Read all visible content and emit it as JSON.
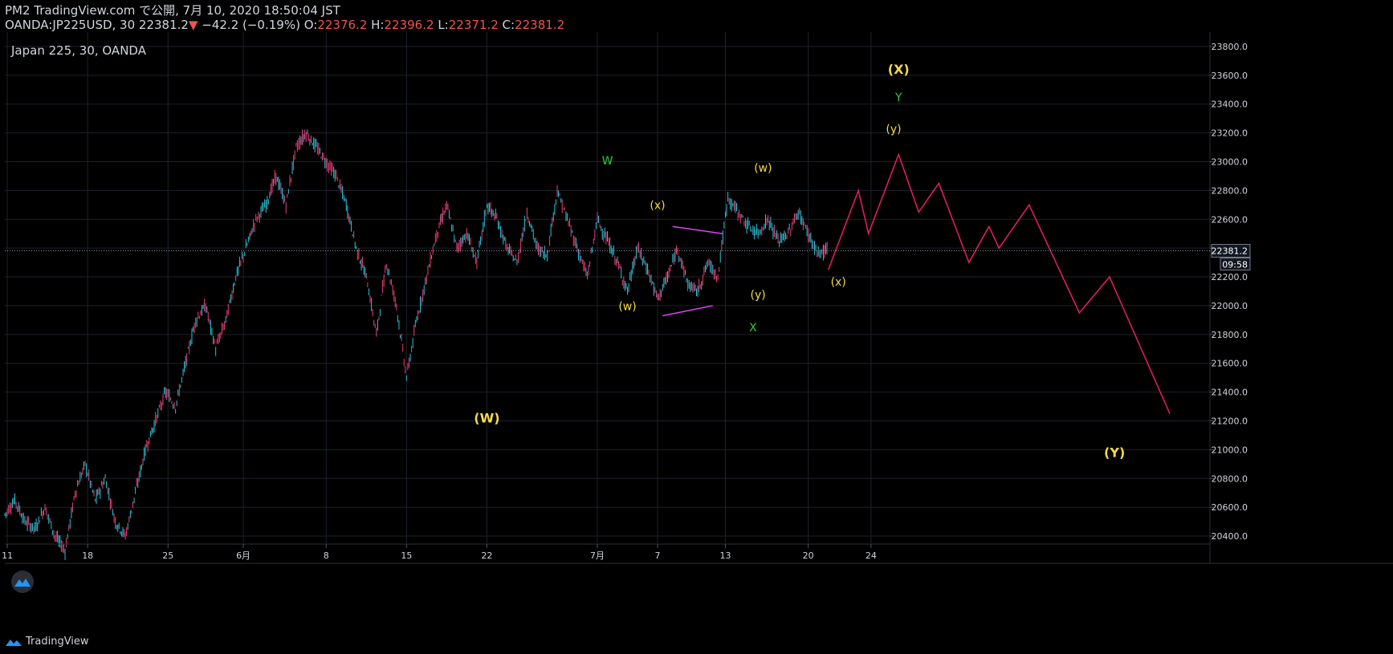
{
  "header": {
    "published": "PM2 TradingView.com で公開, 7月 10, 2020 18:50:04 JST",
    "symbol": "OANDA:JP225USD, 30",
    "last": "22381.2",
    "change": "−42.2 (−0.19%)",
    "o_label": "O:",
    "o_value": "22376.2",
    "h_label": "H:",
    "h_value": "22396.2",
    "l_label": "L:",
    "l_value": "22371.2",
    "c_label": "C:",
    "c_value": "22381.2"
  },
  "chart_data": {
    "type": "line",
    "title": "Japan 225, 30, OANDA",
    "ylim": [
      20350,
      23900
    ],
    "y_ticks": [
      "23800.0",
      "23600.0",
      "23400.0",
      "23200.0",
      "23000.0",
      "22800.0",
      "22600.0",
      "22400.0",
      "22200.0",
      "22000.0",
      "21800.0",
      "21600.0",
      "21400.0",
      "21200.0",
      "21000.0",
      "20800.0",
      "20600.0",
      "20400.0"
    ],
    "x_ticks": [
      "11",
      "18",
      "25",
      "6月",
      "8",
      "15",
      "22",
      "7月",
      "7",
      "13",
      "20",
      "24"
    ],
    "current_price": "22381.2",
    "countdown": "09:58",
    "colors": {
      "up": "#26c6da",
      "down": "#ec407a",
      "projection": "#e91e63",
      "channel": "#e040fb",
      "grid": "#1e222d",
      "yellow": "#f5d94a",
      "green": "#2ecc40"
    },
    "price_series": {
      "name": "",
      "points": [
        [
          0,
          20550
        ],
        [
          2,
          20650
        ],
        [
          4,
          20500
        ],
        [
          6,
          20450
        ],
        [
          8,
          20600
        ],
        [
          10,
          20400
        ],
        [
          12,
          20300
        ],
        [
          14,
          20700
        ],
        [
          16,
          20900
        ],
        [
          18,
          20650
        ],
        [
          20,
          20800
        ],
        [
          22,
          20500
        ],
        [
          24,
          20400
        ],
        [
          26,
          20700
        ],
        [
          28,
          21000
        ],
        [
          30,
          21200
        ],
        [
          32,
          21400
        ],
        [
          34,
          21300
        ],
        [
          36,
          21600
        ],
        [
          38,
          21900
        ],
        [
          40,
          22000
        ],
        [
          42,
          21700
        ],
        [
          44,
          21900
        ],
        [
          46,
          22200
        ],
        [
          48,
          22400
        ],
        [
          50,
          22600
        ],
        [
          52,
          22700
        ],
        [
          54,
          22900
        ],
        [
          56,
          22700
        ],
        [
          58,
          23100
        ],
        [
          60,
          23200
        ],
        [
          62,
          23100
        ],
        [
          64,
          23000
        ],
        [
          66,
          22900
        ],
        [
          68,
          22700
        ],
        [
          70,
          22400
        ],
        [
          72,
          22200
        ],
        [
          74,
          21800
        ],
        [
          76,
          22300
        ],
        [
          78,
          22000
        ],
        [
          80,
          21500
        ],
        [
          82,
          21900
        ],
        [
          84,
          22200
        ],
        [
          86,
          22500
        ],
        [
          88,
          22700
        ],
        [
          90,
          22400
        ],
        [
          92,
          22500
        ],
        [
          94,
          22300
        ],
        [
          96,
          22700
        ],
        [
          98,
          22600
        ],
        [
          100,
          22400
        ],
        [
          102,
          22300
        ],
        [
          104,
          22650
        ],
        [
          106,
          22400
        ],
        [
          108,
          22350
        ],
        [
          110,
          22800
        ],
        [
          112,
          22600
        ],
        [
          114,
          22400
        ],
        [
          116,
          22200
        ],
        [
          118,
          22600
        ],
        [
          120,
          22450
        ],
        [
          122,
          22300
        ],
        [
          124,
          22100
        ],
        [
          126,
          22400
        ],
        [
          128,
          22250
        ],
        [
          130,
          22050
        ],
        [
          132,
          22200
        ],
        [
          134,
          22400
        ],
        [
          136,
          22150
        ],
        [
          138,
          22100
        ],
        [
          140,
          22300
        ],
        [
          142,
          22200
        ],
        [
          144,
          22750
        ],
        [
          146,
          22650
        ],
        [
          148,
          22550
        ],
        [
          150,
          22500
        ],
        [
          152,
          22600
        ],
        [
          154,
          22450
        ],
        [
          156,
          22500
        ],
        [
          158,
          22650
        ],
        [
          160,
          22500
        ],
        [
          162,
          22350
        ],
        [
          164,
          22400
        ]
      ]
    },
    "projection": {
      "name": "",
      "points": [
        [
          164,
          22250
        ],
        [
          170,
          22800
        ],
        [
          172,
          22500
        ],
        [
          178,
          23050
        ],
        [
          182,
          22650
        ],
        [
          186,
          22850
        ],
        [
          192,
          22300
        ],
        [
          196,
          22550
        ],
        [
          198,
          22400
        ],
        [
          204,
          22700
        ],
        [
          214,
          21950
        ],
        [
          220,
          22200
        ],
        [
          232,
          21250
        ]
      ]
    },
    "channel_lines": [
      {
        "points": [
          [
            133,
            22550
          ],
          [
            143,
            22500
          ]
        ]
      },
      {
        "points": [
          [
            131,
            21930
          ],
          [
            141,
            22000
          ]
        ]
      }
    ],
    "annotations": [
      {
        "text": "(X)",
        "x": 178,
        "y": 23610,
        "color": "yellow",
        "bold": true
      },
      {
        "text": "Y",
        "x": 178,
        "y": 23420,
        "color": "green",
        "bold": false
      },
      {
        "text": "(y)",
        "x": 177,
        "y": 23200,
        "color": "yellow",
        "bold": false
      },
      {
        "text": "W",
        "x": 120,
        "y": 22980,
        "color": "green",
        "bold": false
      },
      {
        "text": "(w)",
        "x": 151,
        "y": 22930,
        "color": "yellow",
        "bold": false
      },
      {
        "text": "(x)",
        "x": 130,
        "y": 22670,
        "color": "yellow",
        "bold": false
      },
      {
        "text": "(w)",
        "x": 124,
        "y": 21970,
        "color": "yellow",
        "bold": false
      },
      {
        "text": "(y)",
        "x": 150,
        "y": 22050,
        "color": "yellow",
        "bold": false
      },
      {
        "text": "(x)",
        "x": 166,
        "y": 22140,
        "color": "yellow",
        "bold": false
      },
      {
        "text": "X",
        "x": 149,
        "y": 21820,
        "color": "green",
        "bold": false
      },
      {
        "text": "(W)",
        "x": 96,
        "y": 21190,
        "color": "yellow",
        "bold": true
      },
      {
        "text": "(Y)",
        "x": 221,
        "y": 20950,
        "color": "yellow",
        "bold": true
      }
    ]
  },
  "brand": {
    "label": "TradingView"
  }
}
